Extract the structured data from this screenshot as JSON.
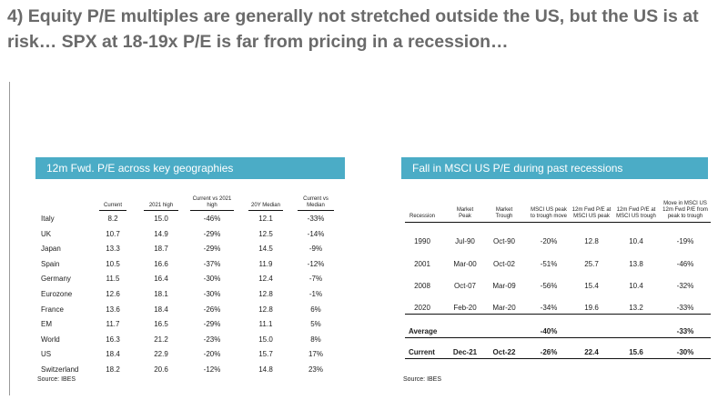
{
  "headline": "4) Equity P/E multiples are generally not stretched outside the US, but the US is at risk… SPX at 18-19x P/E is far from pricing in a recession…",
  "left_table": {
    "title": "12m Fwd. P/E across key geographies",
    "headers": [
      "Current",
      "2021 high",
      "Current vs 2021 high",
      "20Y Median",
      "Current vs Median"
    ],
    "rows": [
      {
        "name": "Italy",
        "current": "8.2",
        "high2021": "15.0",
        "vs_high": "-46%",
        "median": "12.1",
        "vs_median": "-33%"
      },
      {
        "name": "UK",
        "current": "10.7",
        "high2021": "14.9",
        "vs_high": "-29%",
        "median": "12.5",
        "vs_median": "-14%"
      },
      {
        "name": "Japan",
        "current": "13.3",
        "high2021": "18.7",
        "vs_high": "-29%",
        "median": "14.5",
        "vs_median": "-9%"
      },
      {
        "name": "Spain",
        "current": "10.5",
        "high2021": "16.6",
        "vs_high": "-37%",
        "median": "11.9",
        "vs_median": "-12%"
      },
      {
        "name": "Germany",
        "current": "11.5",
        "high2021": "16.4",
        "vs_high": "-30%",
        "median": "12.4",
        "vs_median": "-7%"
      },
      {
        "name": "Eurozone",
        "current": "12.6",
        "high2021": "18.1",
        "vs_high": "-30%",
        "median": "12.8",
        "vs_median": "-1%"
      },
      {
        "name": "France",
        "current": "13.6",
        "high2021": "18.4",
        "vs_high": "-26%",
        "median": "12.8",
        "vs_median": "6%"
      },
      {
        "name": "EM",
        "current": "11.7",
        "high2021": "16.5",
        "vs_high": "-29%",
        "median": "11.1",
        "vs_median": "5%"
      },
      {
        "name": "World",
        "current": "16.3",
        "high2021": "21.2",
        "vs_high": "-23%",
        "median": "15.0",
        "vs_median": "8%"
      },
      {
        "name": "US",
        "current": "18.4",
        "high2021": "22.9",
        "vs_high": "-20%",
        "median": "15.7",
        "vs_median": "17%"
      },
      {
        "name": "Switzerland",
        "current": "18.2",
        "high2021": "20.6",
        "vs_high": "-12%",
        "median": "14.8",
        "vs_median": "23%"
      }
    ],
    "source": "Source: IBES"
  },
  "right_table": {
    "title": "Fall in MSCI US P/E during past recessions",
    "headers": [
      "Recession",
      "Market Peak",
      "Market Trough",
      "MSCI US peak to trough move",
      "12m Fwd P/E at MSCI US peak",
      "12m Fwd P/E at MSCI US trough",
      "Move in MSCI US 12m Fwd P/E from peak to trough"
    ],
    "rows": [
      {
        "recession": "1990",
        "peak": "Jul-90",
        "trough": "Oct-90",
        "move": "-20%",
        "pe_peak": "12.8",
        "pe_trough": "10.4",
        "pe_move": "-19%"
      },
      {
        "recession": "2001",
        "peak": "Mar-00",
        "trough": "Oct-02",
        "move": "-51%",
        "pe_peak": "25.7",
        "pe_trough": "13.8",
        "pe_move": "-46%"
      },
      {
        "recession": "2008",
        "peak": "Oct-07",
        "trough": "Mar-09",
        "move": "-56%",
        "pe_peak": "15.4",
        "pe_trough": "10.4",
        "pe_move": "-32%"
      },
      {
        "recession": "2020",
        "peak": "Feb-20",
        "trough": "Mar-20",
        "move": "-34%",
        "pe_peak": "19.6",
        "pe_trough": "13.2",
        "pe_move": "-33%"
      }
    ],
    "average": {
      "label": "Average",
      "move": "-40%",
      "pe_move": "-33%"
    },
    "current": {
      "label": "Current",
      "peak": "Dec-21",
      "trough": "Oct-22",
      "move": "-26%",
      "pe_peak": "22.4",
      "pe_trough": "15.6",
      "pe_move": "-30%"
    },
    "source": "Source: IBES"
  },
  "colors": {
    "header_bg": "#4bacc6",
    "headline": "#6a6a6a"
  }
}
